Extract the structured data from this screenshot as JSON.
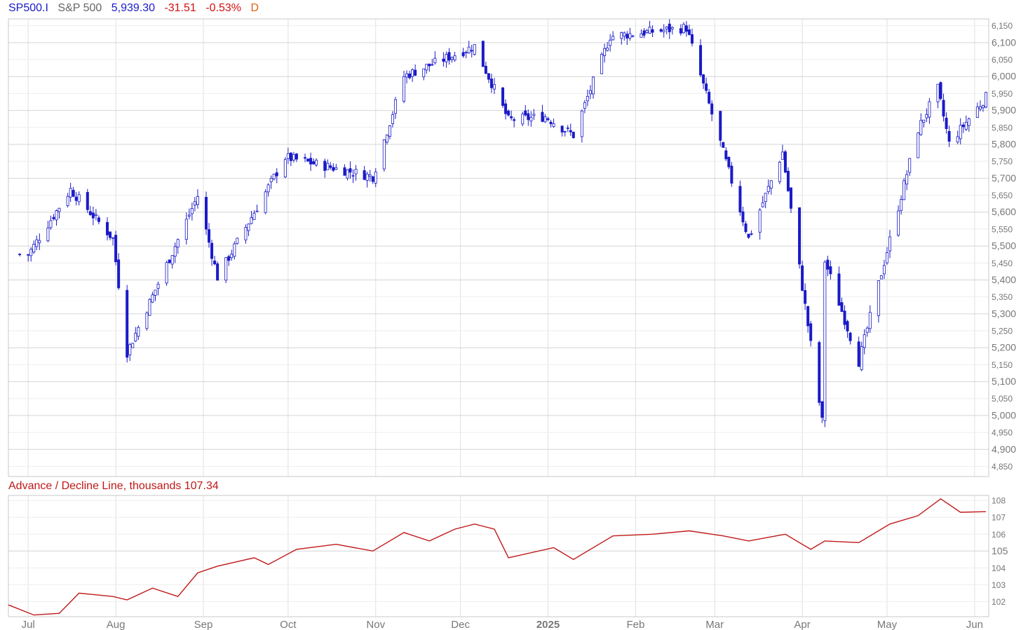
{
  "header": {
    "symbol": "SP500.I",
    "name": "S&P 500",
    "price": "5,939.30",
    "change": "-31.51",
    "change_pct": "-0.53%",
    "period": "D"
  },
  "indicator": {
    "title": "Advance / Decline Line, thousands",
    "value": "107.34"
  },
  "colors": {
    "candles": "#1a1ac8",
    "ad_line": "#c01818",
    "grid": "#e0e0e0"
  },
  "chart_data": [
    {
      "type": "candlestick",
      "title": "S&P 500",
      "ylim": [
        4820,
        6170
      ],
      "y_ticks": [
        "6,150",
        "6,100",
        "6,050",
        "6,000",
        "5,950",
        "5,900",
        "5,850",
        "5,800",
        "5,750",
        "5,700",
        "5,650",
        "5,600",
        "5,550",
        "5,500",
        "5,450",
        "5,400",
        "5,350",
        "5,300",
        "5,250",
        "5,200",
        "5,150",
        "5,100",
        "5,050",
        "5,000",
        "4,950",
        "4,900",
        "4,850"
      ],
      "x_ticks": [
        "Jul",
        "Aug",
        "Sep",
        "Oct",
        "Nov",
        "Dec",
        "2025",
        "Feb",
        "Mar",
        "Apr",
        "May",
        "Jun"
      ],
      "x_range": [
        "2024-06-24",
        "2025-06-06"
      ],
      "monthly_close": [
        {
          "date": "2024-07-01",
          "value": 5475
        },
        {
          "date": "2024-07-16",
          "value": 5667
        },
        {
          "date": "2024-07-31",
          "value": 5522
        },
        {
          "date": "2024-08-05",
          "value": 5186
        },
        {
          "date": "2024-08-30",
          "value": 5648
        },
        {
          "date": "2024-09-06",
          "value": 5408
        },
        {
          "date": "2024-09-30",
          "value": 5762
        },
        {
          "date": "2024-10-31",
          "value": 5705
        },
        {
          "date": "2024-11-11",
          "value": 6001
        },
        {
          "date": "2024-12-06",
          "value": 6090
        },
        {
          "date": "2024-12-18",
          "value": 5872
        },
        {
          "date": "2024-12-31",
          "value": 5882
        },
        {
          "date": "2025-01-10",
          "value": 5827
        },
        {
          "date": "2025-01-23",
          "value": 6119
        },
        {
          "date": "2025-02-19",
          "value": 6144
        },
        {
          "date": "2025-03-13",
          "value": 5522
        },
        {
          "date": "2025-03-25",
          "value": 5777
        },
        {
          "date": "2025-04-08",
          "value": 4983
        },
        {
          "date": "2025-04-09",
          "value": 5457
        },
        {
          "date": "2025-04-21",
          "value": 5159
        },
        {
          "date": "2025-05-12",
          "value": 5844
        },
        {
          "date": "2025-05-19",
          "value": 5963
        },
        {
          "date": "2025-05-23",
          "value": 5802
        },
        {
          "date": "2025-06-05",
          "value": 5939
        }
      ]
    },
    {
      "type": "line",
      "title": "Advance / Decline Line, thousands",
      "ylim": [
        101.1,
        108.3
      ],
      "y_ticks": [
        "108",
        "107",
        "106",
        "105",
        "104",
        "103",
        "102"
      ],
      "last_value": 107.34,
      "series": [
        {
          "values": [
            {
              "date": "2024-06-24",
              "value": 101.8
            },
            {
              "date": "2024-07-03",
              "value": 101.2
            },
            {
              "date": "2024-07-12",
              "value": 101.3
            },
            {
              "date": "2024-07-19",
              "value": 102.5
            },
            {
              "date": "2024-07-31",
              "value": 102.3
            },
            {
              "date": "2024-08-05",
              "value": 102.1
            },
            {
              "date": "2024-08-14",
              "value": 102.8
            },
            {
              "date": "2024-08-23",
              "value": 102.3
            },
            {
              "date": "2024-08-30",
              "value": 103.7
            },
            {
              "date": "2024-09-06",
              "value": 104.1
            },
            {
              "date": "2024-09-19",
              "value": 104.6
            },
            {
              "date": "2024-09-24",
              "value": 104.2
            },
            {
              "date": "2024-10-04",
              "value": 105.1
            },
            {
              "date": "2024-10-18",
              "value": 105.4
            },
            {
              "date": "2024-10-31",
              "value": 105.0
            },
            {
              "date": "2024-11-11",
              "value": 106.1
            },
            {
              "date": "2024-11-20",
              "value": 105.6
            },
            {
              "date": "2024-11-29",
              "value": 106.3
            },
            {
              "date": "2024-12-06",
              "value": 106.6
            },
            {
              "date": "2024-12-13",
              "value": 106.3
            },
            {
              "date": "2024-12-18",
              "value": 104.6
            },
            {
              "date": "2025-01-03",
              "value": 105.2
            },
            {
              "date": "2025-01-10",
              "value": 104.5
            },
            {
              "date": "2025-01-24",
              "value": 105.9
            },
            {
              "date": "2025-02-07",
              "value": 106.0
            },
            {
              "date": "2025-02-20",
              "value": 106.2
            },
            {
              "date": "2025-03-04",
              "value": 105.9
            },
            {
              "date": "2025-03-13",
              "value": 105.6
            },
            {
              "date": "2025-03-26",
              "value": 106.0
            },
            {
              "date": "2025-04-04",
              "value": 105.1
            },
            {
              "date": "2025-04-09",
              "value": 105.6
            },
            {
              "date": "2025-04-21",
              "value": 105.5
            },
            {
              "date": "2025-05-02",
              "value": 106.6
            },
            {
              "date": "2025-05-12",
              "value": 107.1
            },
            {
              "date": "2025-05-20",
              "value": 108.1
            },
            {
              "date": "2025-05-27",
              "value": 107.3
            },
            {
              "date": "2025-06-05",
              "value": 107.34
            }
          ]
        }
      ]
    }
  ]
}
